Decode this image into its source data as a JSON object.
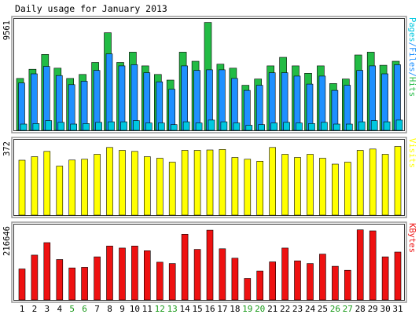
{
  "chart_data": {
    "type": "bar",
    "title": "Daily usage for January 2013",
    "categories": [
      "1",
      "2",
      "3",
      "4",
      "5",
      "6",
      "7",
      "8",
      "9",
      "10",
      "11",
      "12",
      "13",
      "14",
      "15",
      "16",
      "17",
      "18",
      "19",
      "20",
      "21",
      "22",
      "23",
      "24",
      "25",
      "26",
      "27",
      "28",
      "29",
      "30",
      "31"
    ],
    "weekend_days": [
      "5",
      "6",
      "12",
      "13",
      "19",
      "20",
      "26",
      "27"
    ],
    "panels": [
      {
        "id": "hits",
        "label": "Pages/Files/Hits",
        "label_parts": [
          "Pages",
          "/",
          "Files",
          "/",
          "Hits"
        ],
        "max_label": "9561",
        "ymax": 9561,
        "series": [
          {
            "name": "Hits",
            "color": "#22bb44",
            "values": [
              4550,
              5350,
              6650,
              5450,
              4550,
              4900,
              5950,
              8550,
              5950,
              6850,
              5650,
              4900,
              4400,
              6850,
              6050,
              9450,
              5800,
              5450,
              3950,
              4500,
              5650,
              6400,
              5650,
              5000,
              5650,
              4100,
              4500,
              6600,
              6850,
              5700,
              6050
            ]
          },
          {
            "name": "Files",
            "color": "#1e90ff",
            "values": [
              4150,
              4950,
              5600,
              4800,
              4000,
              4300,
              5250,
              6700,
              5650,
              5750,
              5050,
              4250,
              3600,
              5650,
              5250,
              5300,
              5300,
              4550,
              3500,
              3950,
              5050,
              5050,
              4750,
              4050,
              4750,
              3500,
              3950,
              5250,
              5650,
              4950,
              5750
            ]
          },
          {
            "name": "Pages",
            "color": "#00c8e0",
            "values": [
              550,
              600,
              850,
              700,
              550,
              600,
              700,
              750,
              750,
              850,
              650,
              650,
              500,
              750,
              650,
              900,
              750,
              650,
              450,
              500,
              650,
              700,
              650,
              600,
              700,
              550,
              550,
              750,
              850,
              750,
              900
            ]
          }
        ]
      },
      {
        "id": "visits",
        "label": "Visits",
        "max_label": "372",
        "ymax": 372,
        "series": [
          {
            "name": "Visits",
            "color": "#ffff00",
            "values": [
              280,
              298,
              325,
              250,
              281,
              285,
              310,
              345,
              330,
              325,
              298,
              290,
              270,
              330,
              330,
              332,
              335,
              294,
              285,
              275,
              345,
              310,
              294,
              310,
              290,
              260,
              270,
              330,
              337,
              310,
              350
            ]
          }
        ]
      },
      {
        "id": "kbytes",
        "label": "KBytes",
        "max_label": "216646",
        "ymax": 216646,
        "series": [
          {
            "name": "KBytes",
            "color": "#ee1111",
            "values": [
              92000,
              133000,
              170000,
              120000,
              95000,
              97000,
              128000,
              160000,
              154000,
              160000,
              146000,
              112000,
              108000,
              195000,
              150000,
              207000,
              152000,
              124000,
              64000,
              86000,
              113000,
              154000,
              116000,
              108000,
              136000,
              100000,
              88000,
              208000,
              205000,
              128000,
              142000
            ]
          }
        ]
      }
    ]
  }
}
